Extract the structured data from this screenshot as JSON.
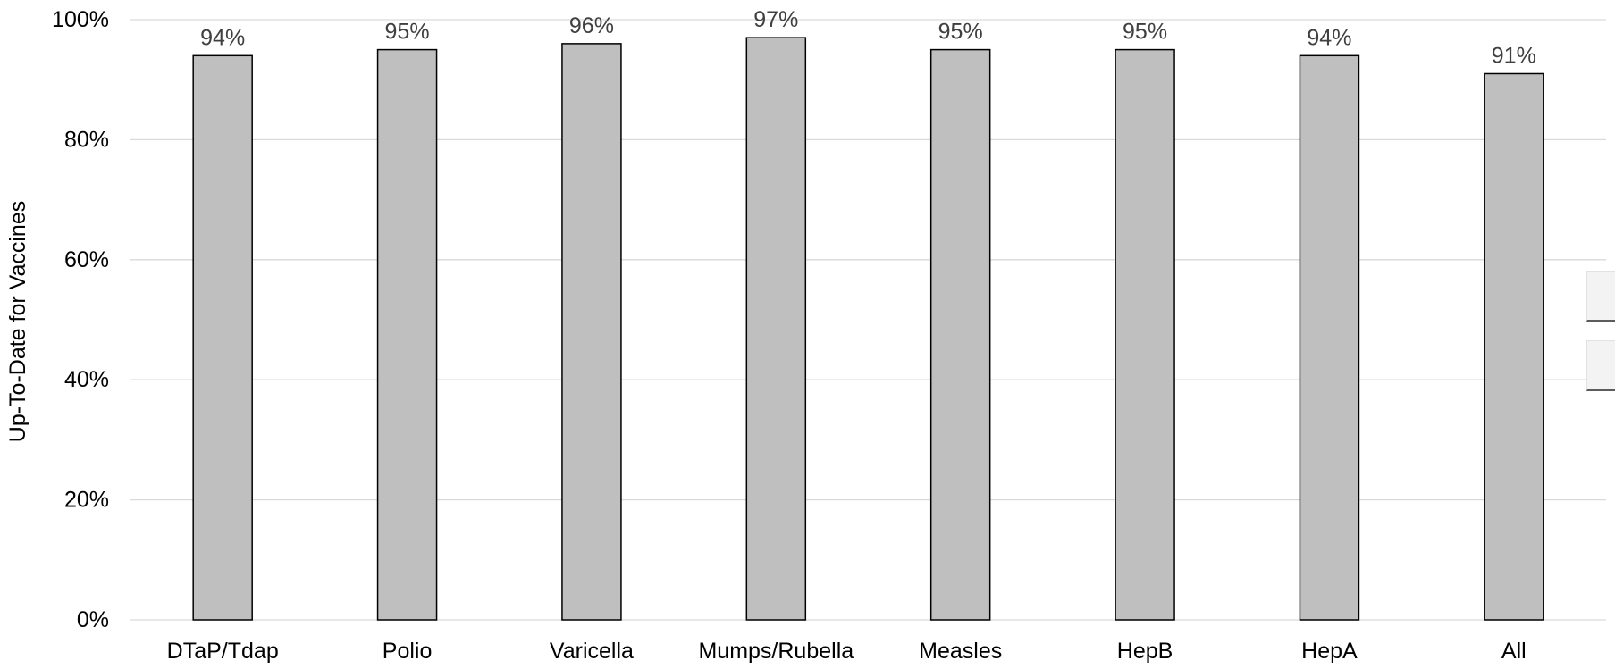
{
  "chart_data": {
    "type": "bar",
    "title": "",
    "xlabel": "",
    "ylabel": "Up-To-Date for Vaccines",
    "categories": [
      "DTaP/Tdap",
      "Polio",
      "Varicella",
      "Mumps/Rubella",
      "Measles",
      "HepB",
      "HepA",
      "All"
    ],
    "values": [
      94,
      95,
      96,
      97,
      95,
      95,
      94,
      91
    ],
    "data_labels": [
      "94%",
      "95%",
      "96%",
      "97%",
      "95%",
      "95%",
      "94%",
      "91%"
    ],
    "ylim": [
      0,
      100
    ],
    "yticks": [
      0,
      20,
      40,
      60,
      80,
      100
    ],
    "ytick_labels": [
      "0%",
      "20%",
      "40%",
      "60%",
      "80%",
      "100%"
    ],
    "grid": true,
    "legend": "none",
    "colors": {
      "bar_fill": "#bfbfbf",
      "bar_stroke": "#000000",
      "gridline": "#d9d9d9",
      "axis_text": "#000000",
      "label_text": "#404040"
    }
  }
}
